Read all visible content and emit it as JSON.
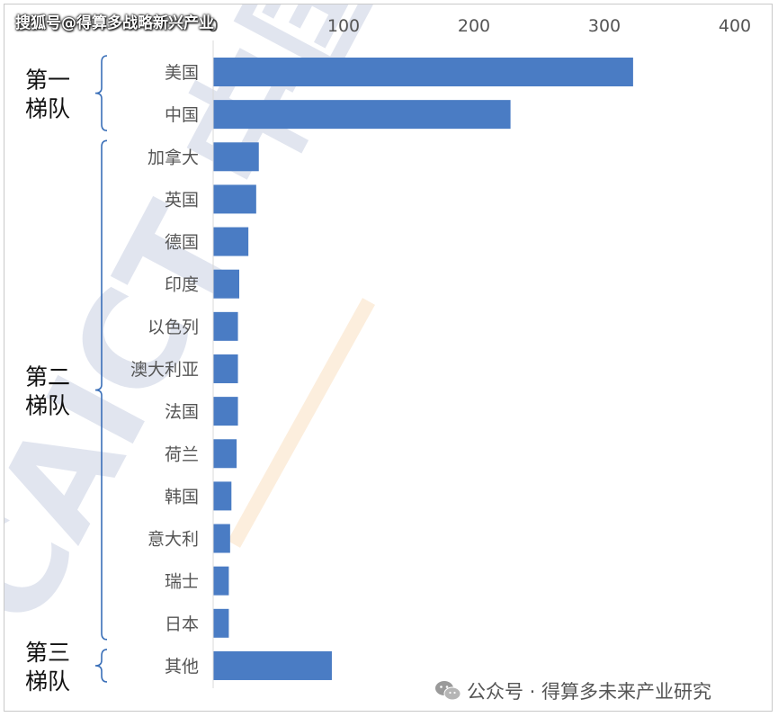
{
  "watermarks": {
    "top": "搜狐号@得算多战略新兴产业",
    "bottom": "公众号 · 得算多未来产业研究",
    "background_logo": "CAICT 中国信通院",
    "icon": "wechat-icon"
  },
  "colors": {
    "bar": "#4a7cc4",
    "bar_dark": "#3d6db5",
    "axis_text": "#555555",
    "brace": "#3a6fb8"
  },
  "tiers": [
    {
      "label_line1": "第一",
      "label_line2": "梯队",
      "from": 0,
      "to": 1
    },
    {
      "label_line1": "第二",
      "label_line2": "梯队",
      "from": 2,
      "to": 13
    },
    {
      "label_line1": "第三",
      "label_line2": "梯队",
      "from": 14,
      "to": 14
    }
  ],
  "chart_data": {
    "type": "bar",
    "orientation": "horizontal",
    "title": "",
    "xlabel": "",
    "ylabel": "",
    "xlim": [
      0,
      400
    ],
    "x_ticks": [
      0,
      100,
      200,
      300,
      400
    ],
    "x_axis_position": "top",
    "grid": false,
    "categories": [
      "美国",
      "中国",
      "加拿大",
      "英国",
      "德国",
      "印度",
      "以色列",
      "澳大利亚",
      "法国",
      "荷兰",
      "韩国",
      "意大利",
      "瑞士",
      "日本",
      "其他"
    ],
    "values": [
      322,
      228,
      35,
      33,
      27,
      20,
      19,
      19,
      19,
      18,
      14,
      13,
      12,
      12,
      91
    ]
  }
}
